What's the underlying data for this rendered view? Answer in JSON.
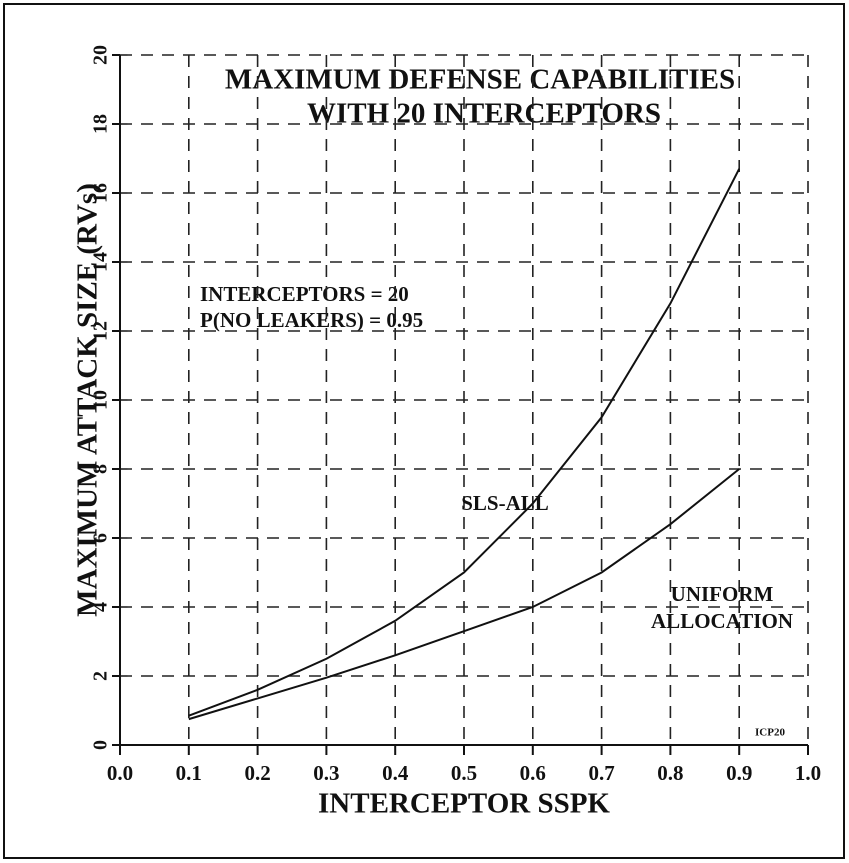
{
  "chart_data": {
    "type": "line",
    "title": [
      "MAXIMUM DEFENSE CAPABILITIES",
      "WITH 20 INTERCEPTORS"
    ],
    "x_label": "INTERCEPTOR SSPK",
    "y_label": "MAXIMUM ATTACK SIZE (RVs)",
    "annotations": [
      "INTERCEPTORS = 20",
      "P(NO LEAKERS) = 0.95",
      "ICP20"
    ],
    "x": [
      0.1,
      0.2,
      0.3,
      0.4,
      0.5,
      0.6,
      0.7,
      0.8,
      0.9
    ],
    "series": [
      {
        "name": "SLS-ALL",
        "color": "#111111",
        "values": [
          0.85,
          1.6,
          2.5,
          3.6,
          5.0,
          7.0,
          9.5,
          12.8,
          16.7
        ]
      },
      {
        "name": "UNIFORM ALLOCATION",
        "color": "#111111",
        "values": [
          0.75,
          1.35,
          1.95,
          2.6,
          3.3,
          4.0,
          5.0,
          6.4,
          8.0
        ]
      }
    ],
    "xlim": [
      0,
      1
    ],
    "xticks": [
      {
        "value": 0,
        "label": "0.0"
      },
      0.1,
      0.2,
      0.3,
      0.4,
      0.5,
      0.6,
      0.7,
      0.8,
      0.9,
      {
        "value": 1,
        "label": "1.0"
      }
    ],
    "ylim": [
      0,
      20
    ],
    "yticks": [
      0,
      2,
      4,
      6,
      8,
      10,
      12,
      14,
      16,
      18,
      20
    ],
    "grid": true
  }
}
